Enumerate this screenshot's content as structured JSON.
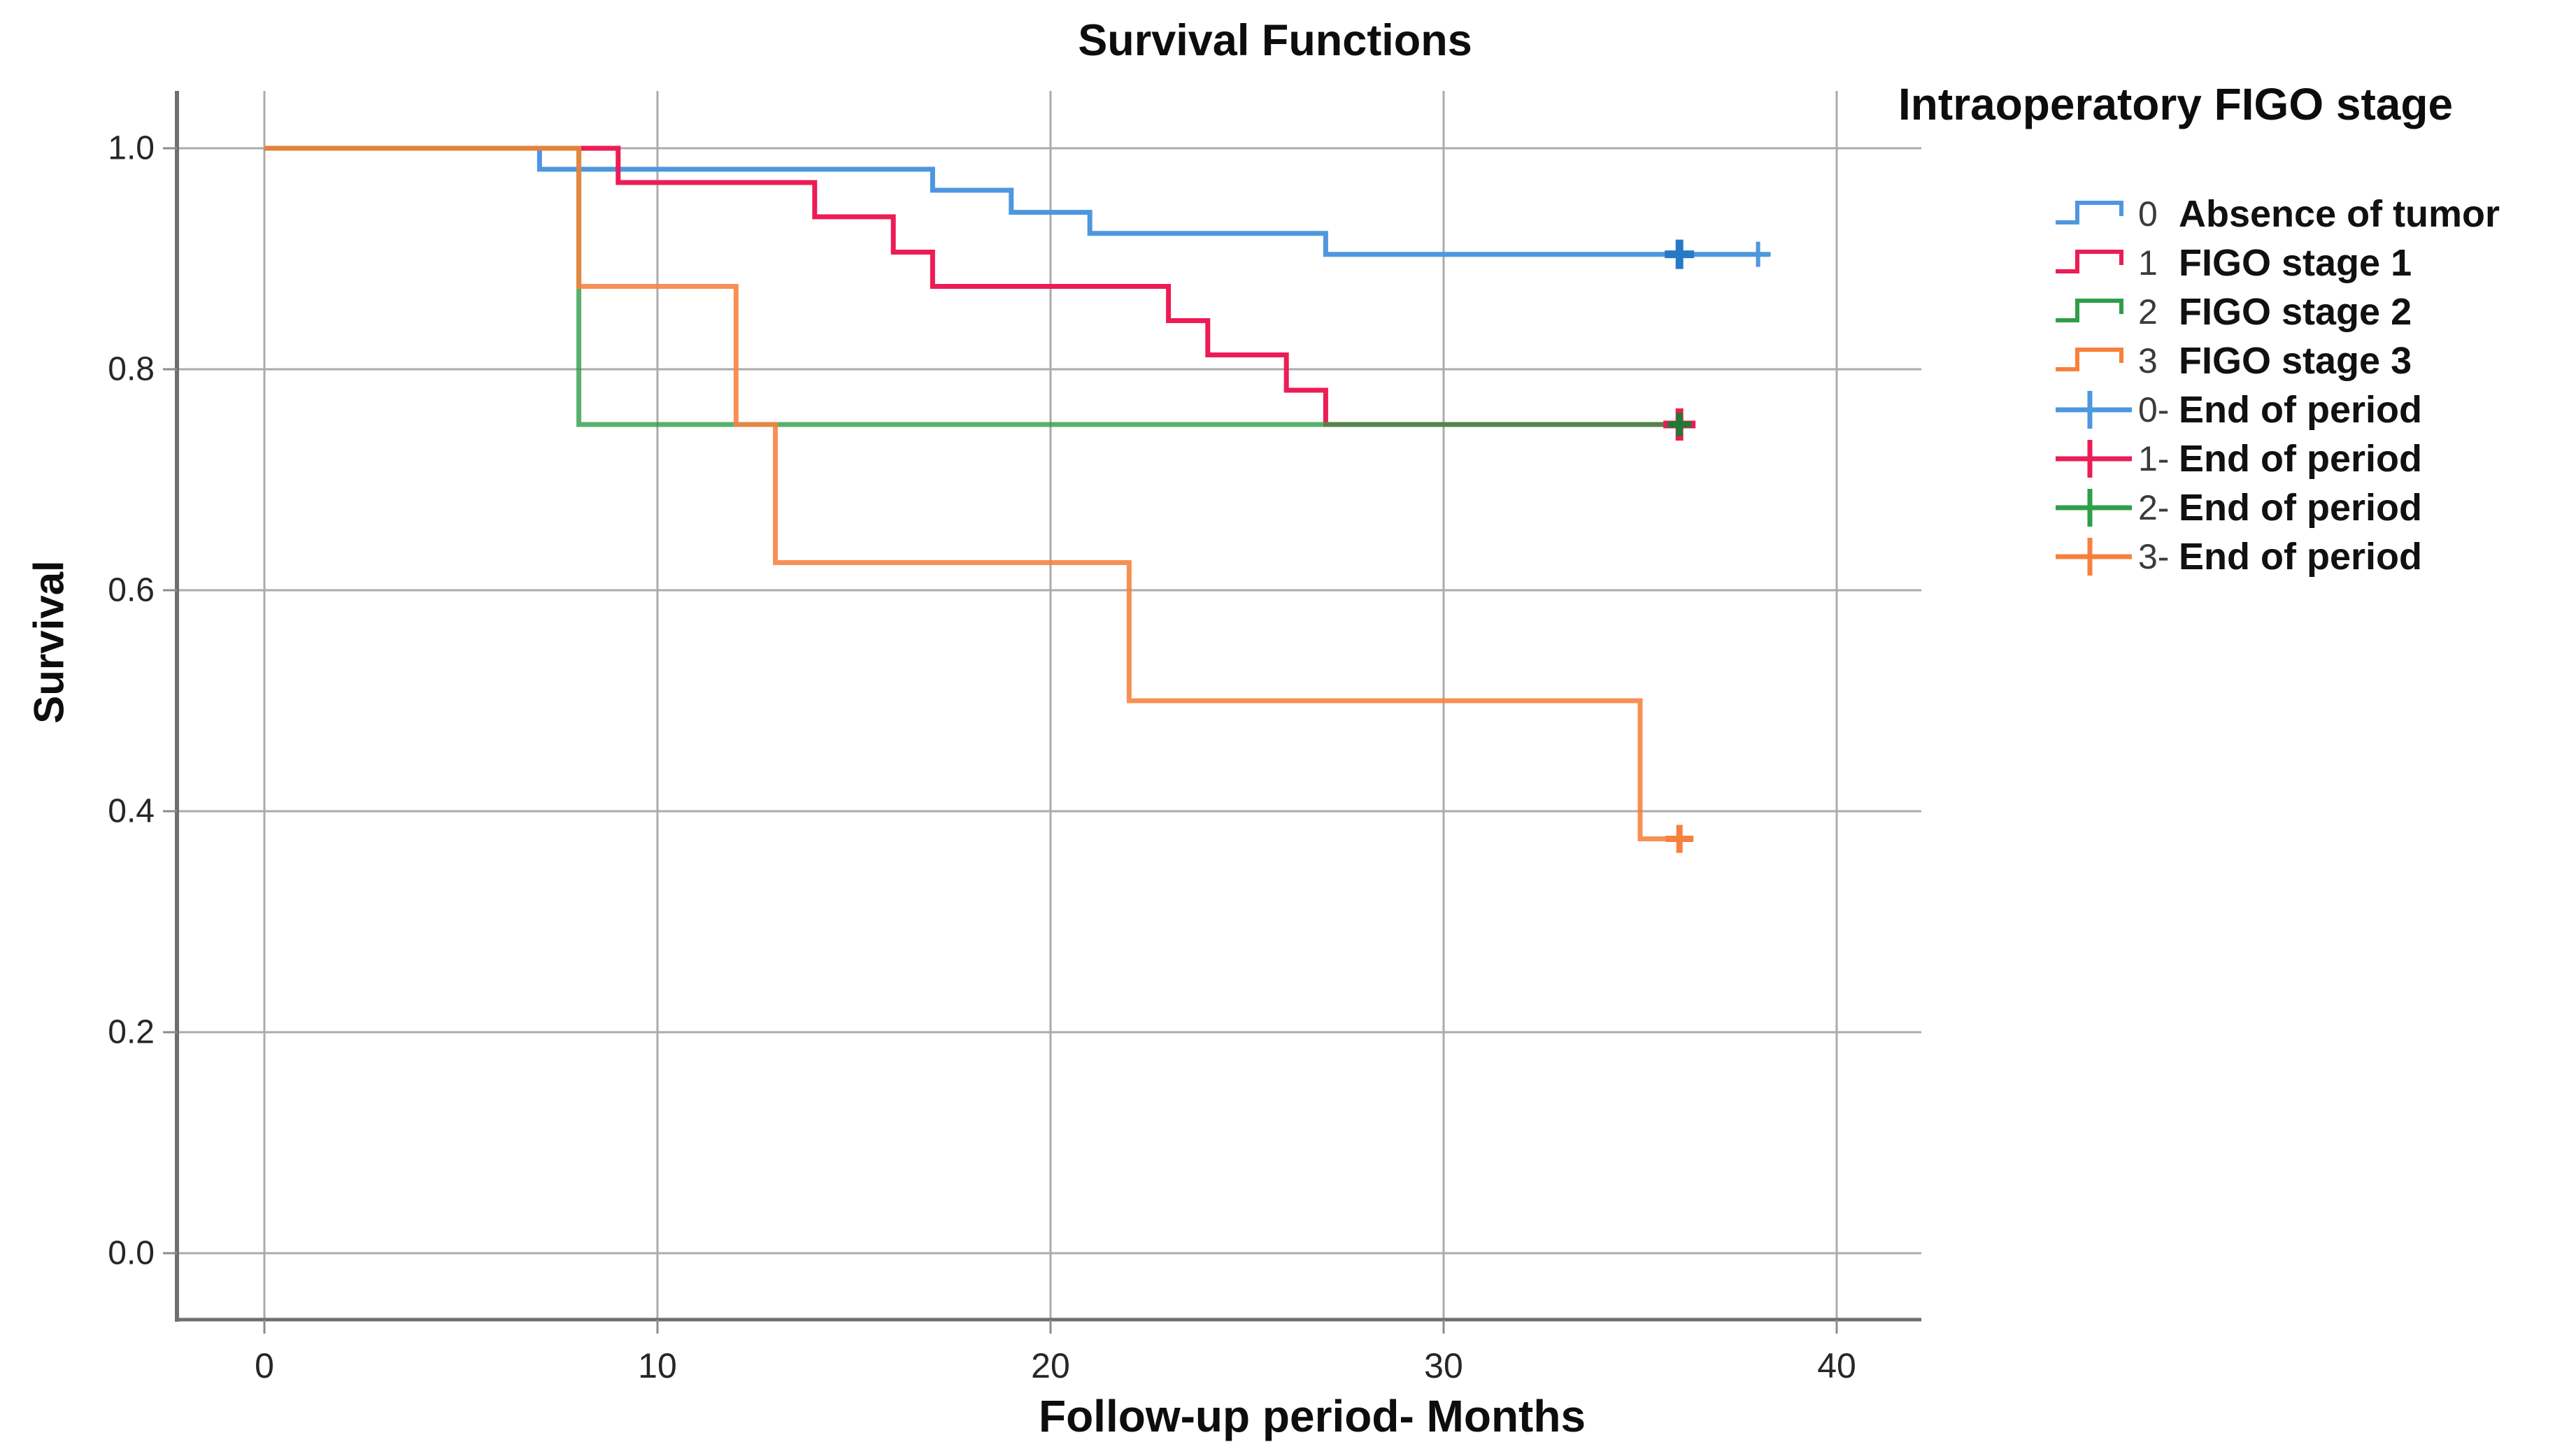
{
  "legend": {
    "title": "Intraoperatory FIGO stage",
    "items": [
      {
        "swatch": "step",
        "color": "#4E97DF",
        "code": "0",
        "label": "Absence of tumor"
      },
      {
        "swatch": "step",
        "color": "#EC1C55",
        "code": "1",
        "label": "FIGO stage 1"
      },
      {
        "swatch": "step",
        "color": "#2E9E49",
        "code": "2",
        "label": "FIGO stage 2"
      },
      {
        "swatch": "step",
        "color": "#F6813C",
        "code": "3",
        "label": "FIGO stage 3"
      },
      {
        "swatch": "plus",
        "color": "#4E97DF",
        "code": "0-",
        "label": "End of period"
      },
      {
        "swatch": "plus",
        "color": "#EC1C55",
        "code": "1-",
        "label": "End of period"
      },
      {
        "swatch": "plus",
        "color": "#2E9E49",
        "code": "2-",
        "label": "End of period"
      },
      {
        "swatch": "plus",
        "color": "#F6813C",
        "code": "3-",
        "label": "End of period"
      }
    ]
  },
  "chart_data": {
    "type": "line",
    "subtype": "kaplan-meier-step-survival",
    "title": "Survival Functions",
    "xlabel": "Follow-up period- Months",
    "ylabel": "Survival",
    "x_ticks": [
      0,
      10,
      20,
      30,
      40
    ],
    "x_tick_labels": [
      "0",
      "10",
      "20",
      "30",
      "40"
    ],
    "y_ticks": [
      1.0,
      0.8,
      0.6,
      0.4,
      0.2,
      0.0
    ],
    "y_tick_labels": [
      "1.0",
      "0.8",
      "0.6",
      "0.4",
      "0.2",
      "0.0"
    ],
    "x_range": [
      -2.224,
      42.153
    ],
    "y_range": [
      -0.0601,
      1.0519
    ],
    "grid": true,
    "legend_position": "right",
    "series": [
      {
        "name": "0 Absence of tumor",
        "color": "#4E97DF",
        "opacity": 1,
        "points": [
          [
            0,
            1.0
          ],
          [
            7,
            1.0
          ],
          [
            7,
            0.981
          ],
          [
            17,
            0.981
          ],
          [
            17,
            0.962
          ],
          [
            19,
            0.962
          ],
          [
            19,
            0.942
          ],
          [
            21,
            0.942
          ],
          [
            21,
            0.923
          ],
          [
            27,
            0.923
          ],
          [
            27,
            0.904
          ],
          [
            38.3,
            0.904
          ]
        ],
        "censored": [
          {
            "t": 36,
            "s": 0.904,
            "r": 21,
            "w": 11,
            "color": "#2878C8"
          },
          {
            "t": 38,
            "s": 0.904,
            "r": 18,
            "w": 6
          }
        ]
      },
      {
        "name": "1 FIGO stage 1",
        "color": "#EC1C55",
        "opacity": 1,
        "points": [
          [
            0,
            1.0
          ],
          [
            9,
            1.0
          ],
          [
            9,
            0.969
          ],
          [
            14,
            0.969
          ],
          [
            14,
            0.938
          ],
          [
            16,
            0.938
          ],
          [
            16,
            0.906
          ],
          [
            17,
            0.906
          ],
          [
            17,
            0.875
          ],
          [
            23,
            0.875
          ],
          [
            23,
            0.844
          ],
          [
            24,
            0.844
          ],
          [
            24,
            0.813
          ],
          [
            26,
            0.813
          ],
          [
            26,
            0.781
          ],
          [
            27,
            0.781
          ],
          [
            27,
            0.75
          ],
          [
            36.3,
            0.75
          ]
        ],
        "censored": [
          {
            "t": 36,
            "s": 0.75,
            "r": 23,
            "w": 11
          }
        ]
      },
      {
        "name": "2 FIGO stage 2",
        "color": "#2E9E49",
        "opacity": 0.8,
        "points": [
          [
            0,
            1.0
          ],
          [
            8,
            1.0
          ],
          [
            8,
            0.75
          ],
          [
            36.3,
            0.75
          ]
        ],
        "censored": [
          {
            "t": 36,
            "s": 0.75,
            "r": 17,
            "w": 9,
            "color": "#1F7A33"
          }
        ]
      },
      {
        "name": "3 FIGO stage 3",
        "color": "#F6813C",
        "opacity": 0.88,
        "points": [
          [
            0,
            1.0
          ],
          [
            8,
            1.0
          ],
          [
            8,
            0.875
          ],
          [
            12,
            0.875
          ],
          [
            12,
            0.75
          ],
          [
            13,
            0.75
          ],
          [
            13,
            0.625
          ],
          [
            22,
            0.625
          ],
          [
            22,
            0.5
          ],
          [
            35,
            0.5
          ],
          [
            35,
            0.375
          ],
          [
            36.2,
            0.375
          ]
        ],
        "censored": [
          {
            "t": 36,
            "s": 0.375,
            "r": 20,
            "w": 9
          }
        ]
      }
    ]
  }
}
